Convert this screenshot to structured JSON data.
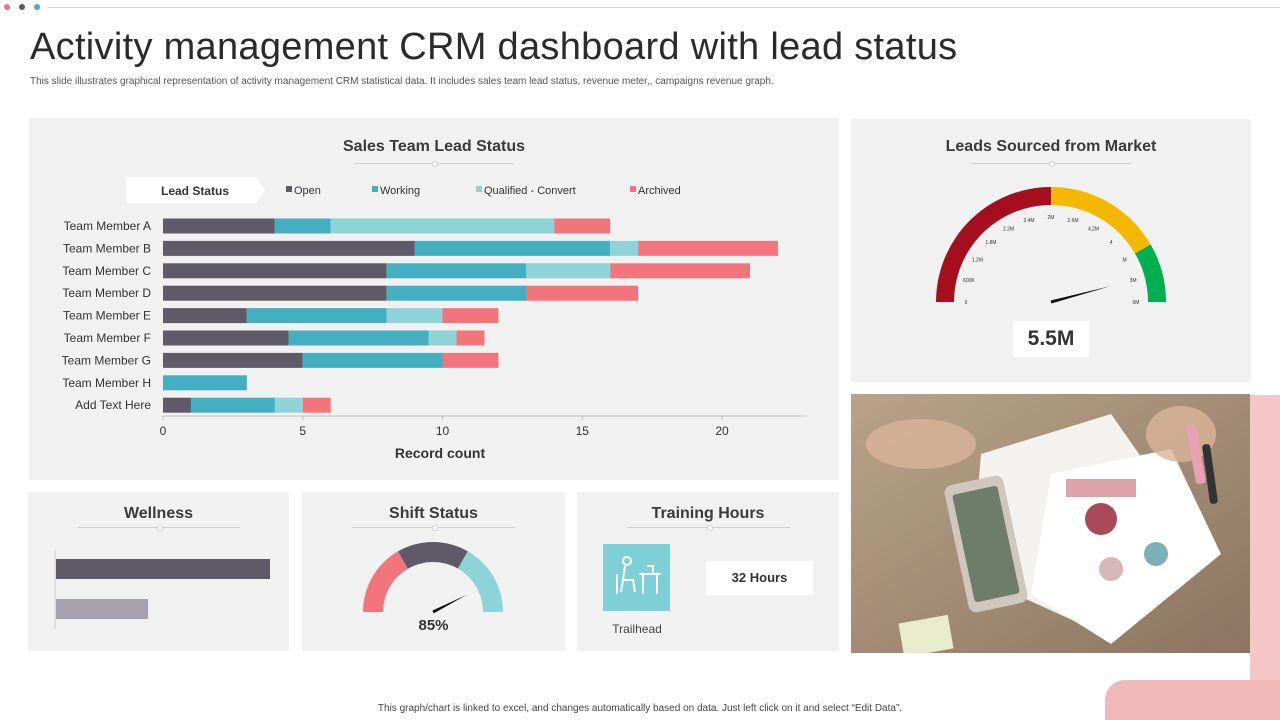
{
  "header": {
    "title": "Activity management CRM dashboard with lead status",
    "subtitle": "This slide illustrates graphical representation of activity management CRM  statistical data. It includes sales team lead status, revenue meter,, campaigns revenue graph."
  },
  "colors": {
    "open": "#5f5a68",
    "working": "#43afc0",
    "qualified": "#8ed3d8",
    "archived": "#f2757c",
    "dot1": "#f2757c",
    "dot2": "#5f5a68",
    "dot3": "#43afc0"
  },
  "sales_panel": {
    "title": "Sales Team Lead Status",
    "legend_title": "Lead Status",
    "xlabel": "Record count"
  },
  "chart_data": [
    {
      "type": "bar",
      "orientation": "horizontal",
      "stacked": true,
      "title": "Sales Team Lead Status",
      "xlabel": "Record count",
      "xlim": [
        0,
        23
      ],
      "xticks": [
        0,
        5,
        10,
        15,
        20
      ],
      "legend_title": "Lead Status",
      "legend_position": "top",
      "categories": [
        "Team Member A",
        "Team Member B",
        "Team Member C",
        "Team Member D",
        "Team Member E",
        "Team Member F",
        "Team Member G",
        "Team Member H",
        "Add Text Here"
      ],
      "series": [
        {
          "name": "Open",
          "color": "#5f5a68",
          "values": [
            4,
            9,
            8,
            8,
            3,
            4.5,
            5,
            0,
            1
          ]
        },
        {
          "name": "Working",
          "color": "#43afc0",
          "values": [
            2,
            7,
            5,
            5,
            5,
            5,
            5,
            3,
            3
          ]
        },
        {
          "name": "Qualified - Convert",
          "color": "#8ed3d8",
          "values": [
            8,
            1,
            3,
            0,
            2,
            1,
            0,
            0,
            1
          ]
        },
        {
          "name": "Archived",
          "color": "#f2757c",
          "values": [
            2,
            5,
            5,
            4,
            2,
            1,
            2,
            0,
            1
          ]
        }
      ]
    },
    {
      "type": "gauge",
      "title": "Leads Sourced from Market",
      "value": 5.5,
      "value_label": "5.5M",
      "min": 0,
      "max": 6,
      "tick_labels": [
        "0",
        "600K",
        "1.2M",
        "1.8M",
        "2.2M",
        "2.4M",
        "2M",
        "2.6M",
        "4.2M",
        "4",
        "M",
        "3M",
        "6M"
      ],
      "bands": [
        {
          "from": 0,
          "to": 3,
          "color": "#a50e1c"
        },
        {
          "from": 3,
          "to": 5,
          "color": "#f5b800"
        },
        {
          "from": 5,
          "to": 6,
          "color": "#00b050"
        }
      ]
    },
    {
      "type": "bar",
      "orientation": "horizontal",
      "title": "Wellness",
      "values": [
        100,
        43
      ],
      "colors": [
        "#5f5a68",
        "#a6a1ad"
      ]
    },
    {
      "type": "gauge",
      "title": "Shift Status",
      "value": 85,
      "value_label": "85%",
      "min": 0,
      "max": 100,
      "bands": [
        {
          "from": 0,
          "to": 33.3,
          "color": "#f2757c"
        },
        {
          "from": 33.3,
          "to": 66.6,
          "color": "#5f5a68"
        },
        {
          "from": 66.6,
          "to": 100,
          "color": "#8ed3d8"
        }
      ]
    }
  ],
  "leads_panel": {
    "title": "Leads Sourced from Market",
    "value": "5.5M"
  },
  "wellness_panel": {
    "title": "Wellness"
  },
  "shift_panel": {
    "title": "Shift Status",
    "value": "85%"
  },
  "training_panel": {
    "title": "Training Hours",
    "hours": "32 Hours",
    "label": "Trailhead",
    "icon": "person-at-desk-icon"
  },
  "footer": {
    "text": "This graph/chart is linked to excel, and changes automatically based on data. Just left click on it and select “Edit Data”."
  }
}
